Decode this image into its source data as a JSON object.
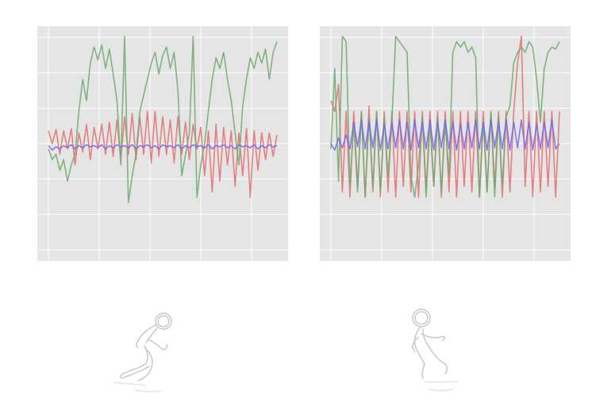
{
  "colors": {
    "background": "#e5e5e5",
    "grid": "#ffffff",
    "series": [
      "#e37070",
      "#6faa6f",
      "#7466e8"
    ],
    "figure_outline": "#c8c8c8"
  },
  "icons": [
    "running-figure-icon",
    "walking-figure-icon"
  ],
  "chart_data": [
    {
      "type": "line",
      "title": "",
      "xlabel": "",
      "ylabel": "",
      "grid": true,
      "legend": "none",
      "xlim": [
        0,
        120
      ],
      "ylim": [
        -1.05,
        1.05
      ],
      "series": [
        {
          "x": [
            0,
            2,
            4,
            6,
            8,
            10,
            12,
            14,
            16,
            18,
            20,
            22,
            24,
            26,
            28,
            30,
            32,
            34,
            36,
            38,
            40,
            42,
            44,
            46,
            48,
            50,
            52,
            54,
            56,
            58,
            60,
            62,
            64,
            66,
            68,
            70,
            72,
            74,
            76,
            78,
            80,
            82,
            84,
            86,
            88,
            90,
            92,
            94,
            96,
            98,
            100,
            102,
            104,
            106,
            108,
            110,
            112,
            114,
            116,
            118,
            120
          ],
          "values": [
            0.12,
            0.0,
            0.13,
            -0.1,
            0.12,
            -0.05,
            0.14,
            -0.2,
            0.1,
            -0.08,
            0.18,
            -0.15,
            0.15,
            -0.05,
            0.18,
            -0.1,
            0.2,
            -0.12,
            0.22,
            -0.15,
            0.25,
            -0.1,
            0.28,
            -0.15,
            0.25,
            -0.1,
            0.3,
            -0.18,
            0.3,
            -0.12,
            0.25,
            -0.1,
            0.22,
            -0.18,
            0.25,
            -0.1,
            0.2,
            -0.15,
            0.18,
            -0.05,
            0.15,
            -0.3,
            0.12,
            -0.45,
            0.18,
            -0.35,
            0.15,
            -0.2,
            0.12,
            -0.4,
            0.1,
            -0.3,
            0.14,
            -0.5,
            0.12,
            -0.25,
            0.1,
            -0.15,
            0.1,
            -0.12,
            0.08
          ]
        },
        {
          "x": [
            0,
            2,
            4,
            6,
            8,
            10,
            12,
            14,
            16,
            18,
            20,
            22,
            24,
            26,
            28,
            30,
            32,
            34,
            36,
            38,
            40,
            42,
            44,
            46,
            48,
            50,
            52,
            54,
            56,
            58,
            60,
            62,
            64,
            66,
            68,
            70,
            72,
            74,
            76,
            78,
            80,
            82,
            84,
            86,
            88,
            90,
            92,
            94,
            96,
            98,
            100,
            102,
            104,
            106,
            108,
            110,
            112,
            114,
            116,
            118,
            120
          ],
          "values": [
            -0.05,
            -0.15,
            -0.1,
            -0.25,
            -0.15,
            -0.35,
            -0.2,
            -0.1,
            0.3,
            0.6,
            0.4,
            0.75,
            0.9,
            0.78,
            0.92,
            0.7,
            0.88,
            0.65,
            0.4,
            -0.2,
            1.0,
            -0.55,
            -0.3,
            -0.1,
            0.3,
            0.45,
            0.6,
            0.75,
            0.85,
            0.65,
            0.82,
            0.9,
            0.7,
            0.85,
            0.5,
            -0.3,
            -0.1,
            0.1,
            1.0,
            -0.5,
            -0.2,
            0.0,
            0.3,
            0.6,
            0.8,
            0.7,
            0.85,
            0.6,
            0.4,
            0.1,
            -0.2,
            0.35,
            0.6,
            0.8,
            0.7,
            0.85,
            0.75,
            0.88,
            0.6,
            0.85,
            0.95
          ]
        },
        {
          "x": [
            0,
            2,
            4,
            6,
            8,
            10,
            12,
            14,
            16,
            18,
            20,
            22,
            24,
            26,
            28,
            30,
            32,
            34,
            36,
            38,
            40,
            42,
            44,
            46,
            48,
            50,
            52,
            54,
            56,
            58,
            60,
            62,
            64,
            66,
            68,
            70,
            72,
            74,
            76,
            78,
            80,
            82,
            84,
            86,
            88,
            90,
            92,
            94,
            96,
            98,
            100,
            102,
            104,
            106,
            108,
            110,
            112,
            114,
            116,
            118,
            120
          ],
          "values": [
            -0.02,
            -0.06,
            -0.03,
            -0.05,
            -0.02,
            -0.04,
            -0.01,
            -0.05,
            -0.02,
            -0.04,
            -0.01,
            -0.03,
            -0.02,
            -0.04,
            -0.01,
            -0.05,
            -0.02,
            -0.04,
            -0.01,
            -0.03,
            -0.02,
            -0.04,
            -0.01,
            -0.05,
            -0.02,
            -0.03,
            -0.01,
            -0.04,
            -0.02,
            -0.05,
            -0.01,
            -0.03,
            -0.02,
            -0.04,
            -0.01,
            -0.05,
            -0.02,
            -0.04,
            -0.01,
            -0.03,
            -0.02,
            -0.04,
            -0.01,
            -0.05,
            -0.02,
            -0.03,
            -0.01,
            -0.04,
            -0.02,
            -0.05,
            -0.01,
            -0.03,
            -0.02,
            -0.04,
            -0.01,
            -0.05,
            -0.02,
            -0.04,
            -0.01,
            -0.03,
            -0.02
          ]
        }
      ]
    },
    {
      "type": "line",
      "title": "",
      "xlabel": "",
      "ylabel": "",
      "grid": true,
      "legend": "none",
      "xlim": [
        0,
        120
      ],
      "ylim": [
        -1.05,
        1.05
      ],
      "series": [
        {
          "x": [
            0,
            2,
            4,
            6,
            8,
            10,
            12,
            14,
            16,
            18,
            20,
            22,
            24,
            26,
            28,
            30,
            32,
            34,
            36,
            38,
            40,
            42,
            44,
            46,
            48,
            50,
            52,
            54,
            56,
            58,
            60,
            62,
            64,
            66,
            68,
            70,
            72,
            74,
            76,
            78,
            80,
            82,
            84,
            86,
            88,
            90,
            92,
            94,
            96,
            98,
            100,
            102,
            104,
            106,
            108,
            110,
            112,
            114,
            116,
            118,
            120
          ],
          "values": [
            0.4,
            0.3,
            0.55,
            -0.45,
            0.3,
            -0.5,
            0.3,
            -0.4,
            0.3,
            -0.5,
            0.35,
            -0.45,
            0.3,
            -0.5,
            0.3,
            -0.45,
            0.3,
            -0.5,
            0.3,
            -0.4,
            0.3,
            -0.45,
            0.3,
            -0.5,
            0.3,
            -0.45,
            0.3,
            -0.4,
            0.3,
            -0.5,
            0.3,
            -0.45,
            0.3,
            -0.5,
            0.3,
            -0.4,
            0.3,
            -0.45,
            0.3,
            -0.5,
            0.3,
            -0.45,
            0.3,
            -0.4,
            0.3,
            -0.5,
            0.3,
            -0.45,
            0.3,
            0.75,
            1.0,
            -0.4,
            0.3,
            -0.5,
            0.3,
            -0.45,
            0.3,
            -0.4,
            0.3,
            -0.5,
            0.3
          ]
        },
        {
          "x": [
            0,
            2,
            4,
            6,
            8,
            10,
            12,
            14,
            16,
            18,
            20,
            22,
            24,
            26,
            28,
            30,
            32,
            34,
            36,
            38,
            40,
            42,
            44,
            46,
            48,
            50,
            52,
            54,
            56,
            58,
            60,
            62,
            64,
            66,
            68,
            70,
            72,
            74,
            76,
            78,
            80,
            82,
            84,
            86,
            88,
            90,
            92,
            94,
            96,
            98,
            100,
            102,
            104,
            106,
            108,
            110,
            112,
            114,
            116,
            118,
            120
          ],
          "values": [
            -0.05,
            0.7,
            -0.35,
            1.0,
            0.95,
            -0.4,
            0.2,
            -0.45,
            0.3,
            -0.5,
            0.25,
            -0.4,
            0.3,
            -0.45,
            0.25,
            -0.3,
            0.2,
            1.0,
            0.95,
            0.9,
            0.85,
            -0.3,
            -0.5,
            -0.2,
            0.25,
            -0.5,
            0.2,
            -0.4,
            0.25,
            -0.45,
            0.2,
            -0.3,
            0.85,
            0.95,
            0.9,
            0.95,
            0.85,
            0.9,
            0.8,
            -0.5,
            0.2,
            -0.45,
            0.3,
            -0.5,
            0.25,
            -0.4,
            0.25,
            0.35,
            0.75,
            0.85,
            0.9,
            0.85,
            0.95,
            0.9,
            0.6,
            0.2,
            0.7,
            0.85,
            0.9,
            0.88,
            0.95
          ]
        },
        {
          "x": [
            0,
            2,
            4,
            6,
            8,
            10,
            12,
            14,
            16,
            18,
            20,
            22,
            24,
            26,
            28,
            30,
            32,
            34,
            36,
            38,
            40,
            42,
            44,
            46,
            48,
            50,
            52,
            54,
            56,
            58,
            60,
            62,
            64,
            66,
            68,
            70,
            72,
            74,
            76,
            78,
            80,
            82,
            84,
            86,
            88,
            90,
            92,
            94,
            96,
            98,
            100,
            102,
            104,
            106,
            108,
            110,
            112,
            114,
            116,
            118,
            120
          ],
          "values": [
            0.0,
            -0.06,
            0.05,
            -0.04,
            0.08,
            -0.05,
            0.2,
            -0.03,
            0.22,
            -0.05,
            0.2,
            -0.04,
            0.22,
            -0.06,
            0.18,
            -0.05,
            0.2,
            -0.04,
            0.22,
            -0.05,
            0.2,
            -0.06,
            0.22,
            -0.04,
            0.2,
            -0.05,
            0.22,
            -0.06,
            0.2,
            -0.04,
            0.22,
            -0.05,
            0.2,
            -0.06,
            0.18,
            -0.05,
            0.2,
            -0.04,
            0.22,
            -0.05,
            0.2,
            -0.06,
            0.22,
            -0.04,
            0.2,
            -0.05,
            0.22,
            -0.06,
            0.2,
            -0.04,
            0.22,
            -0.05,
            0.2,
            -0.06,
            0.18,
            -0.05,
            0.2,
            -0.04,
            0.22,
            -0.05,
            0.0
          ]
        }
      ]
    }
  ]
}
